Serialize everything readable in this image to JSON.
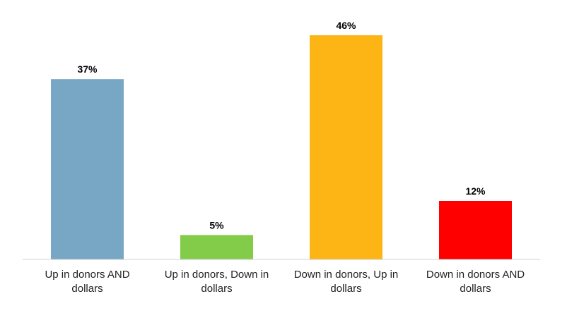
{
  "chart_data": {
    "type": "bar",
    "categories": [
      [
        "Up in donors AND",
        "dollars"
      ],
      [
        "Up in donors, Down in",
        "dollars"
      ],
      [
        "Down in donors, Up in",
        "dollars"
      ],
      [
        "Down in donors AND",
        "dollars"
      ]
    ],
    "values": [
      37,
      5,
      46,
      12
    ],
    "value_labels": [
      "37%",
      "5%",
      "46%",
      "12%"
    ],
    "colors": [
      "#78a7c6",
      "#82cc4a",
      "#fdb515",
      "#fe0000"
    ],
    "title": "",
    "xlabel": "",
    "ylabel": "",
    "ylim": [
      0,
      48
    ],
    "grid": false,
    "legend": "none",
    "data_labels": "above"
  }
}
